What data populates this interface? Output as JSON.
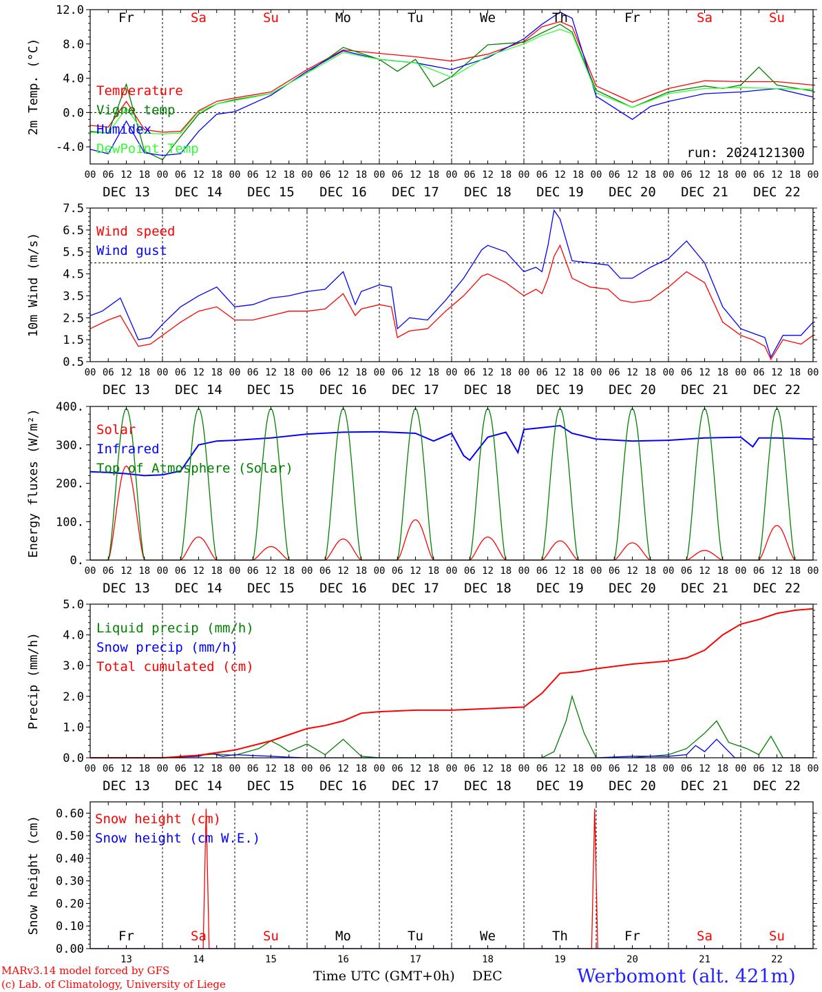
{
  "days_top": [
    {
      "label": "Fr",
      "color": "#000000"
    },
    {
      "label": "Sa",
      "color": "#ff0000"
    },
    {
      "label": "Su",
      "color": "#ff0000"
    },
    {
      "label": "Mo",
      "color": "#000000"
    },
    {
      "label": "Tu",
      "color": "#000000"
    },
    {
      "label": "We",
      "color": "#000000"
    },
    {
      "label": "Th",
      "color": "#000000"
    },
    {
      "label": "Fr",
      "color": "#000000"
    },
    {
      "label": "Sa",
      "color": "#ff0000"
    },
    {
      "label": "Su",
      "color": "#ff0000"
    }
  ],
  "date_labels": [
    "DEC 13",
    "DEC 14",
    "DEC 15",
    "DEC 16",
    "DEC 17",
    "DEC 18",
    "DEC 19",
    "DEC 20",
    "DEC 21",
    "DEC 22"
  ],
  "hour_ticks": [
    "00",
    "06",
    "12",
    "18"
  ],
  "hour_end": "00",
  "bottom_days": [
    "13",
    "14",
    "15",
    "16",
    "17",
    "18",
    "19",
    "20",
    "21",
    "22"
  ],
  "footer": {
    "model": "MARv3.14 model forced by GFS",
    "lab": "(c) Lab. of Climatology, University of Liege",
    "time_axis": "Time UTC (GMT+0h)",
    "month": "DEC",
    "station": "Werbomont (alt. 421m)"
  },
  "chart_data": [
    {
      "type": "line",
      "ylabel": "2m Temp. (°C)",
      "ylim": [
        -6,
        12
      ],
      "yticks": [
        -4,
        0,
        4,
        8,
        12
      ],
      "ytick_labels": [
        "-4.0",
        "0.0",
        "4.0",
        "8.0",
        "12.0"
      ],
      "hline": 0,
      "annotation": "run: 2024121300",
      "series": [
        {
          "name": "Temperature",
          "color": "#ff0000",
          "hours": [
            0,
            6,
            12,
            18,
            24,
            30,
            36,
            42,
            48,
            60,
            72,
            84,
            96,
            108,
            120,
            132,
            144,
            150,
            156,
            160,
            168,
            180,
            192,
            204,
            216,
            228,
            240
          ],
          "values": [
            -1.5,
            -1.7,
            1.3,
            -2.0,
            -2.3,
            -2.2,
            0.2,
            1.3,
            1.7,
            2.4,
            5.0,
            7.3,
            6.9,
            6.5,
            6.0,
            6.8,
            8.3,
            10.0,
            10.6,
            10.0,
            3.1,
            1.2,
            2.8,
            3.7,
            3.6,
            3.6,
            3.2
          ]
        },
        {
          "name": "Vigne temp",
          "color": "#008000",
          "hours": [
            0,
            6,
            12,
            18,
            24,
            30,
            36,
            42,
            48,
            60,
            72,
            84,
            96,
            102,
            108,
            114,
            120,
            132,
            144,
            150,
            156,
            160,
            168,
            180,
            192,
            204,
            210,
            216,
            222,
            228,
            240
          ],
          "values": [
            -2.2,
            -2.4,
            3.3,
            -4.5,
            -5.5,
            -2.8,
            -0.2,
            1.0,
            1.5,
            2.2,
            4.6,
            7.6,
            6.2,
            4.8,
            6.2,
            3.0,
            4.2,
            7.9,
            8.2,
            9.3,
            10.3,
            9.4,
            2.6,
            0.6,
            2.4,
            3.1,
            2.8,
            3.2,
            5.3,
            3.2,
            2.5
          ]
        },
        {
          "name": "Humidex",
          "color": "#0000ff",
          "hours": [
            0,
            6,
            12,
            18,
            24,
            30,
            36,
            42,
            48,
            60,
            72,
            84,
            96,
            108,
            120,
            132,
            144,
            150,
            156,
            160,
            168,
            180,
            186,
            192,
            204,
            216,
            228,
            240
          ],
          "values": [
            -4.3,
            -4.8,
            -1.0,
            -4.7,
            -5.0,
            -4.8,
            -2.2,
            -0.2,
            0.1,
            2.0,
            4.8,
            7.2,
            6.2,
            5.8,
            5.0,
            6.4,
            8.6,
            10.3,
            11.7,
            11.0,
            1.9,
            -0.8,
            0.7,
            1.3,
            2.2,
            2.4,
            2.8,
            1.8
          ]
        },
        {
          "name": "DewPoint Temp",
          "color": "#32ff32",
          "hours": [
            0,
            6,
            12,
            18,
            24,
            30,
            36,
            42,
            48,
            60,
            72,
            84,
            96,
            108,
            120,
            132,
            144,
            150,
            156,
            160,
            168,
            180,
            192,
            204,
            216,
            228,
            240
          ],
          "values": [
            -2.3,
            -2.4,
            0.5,
            -2.4,
            -2.5,
            -2.4,
            0.1,
            1.0,
            1.4,
            2.2,
            4.6,
            7.0,
            6.2,
            5.8,
            4.1,
            6.6,
            8.0,
            9.0,
            9.7,
            9.2,
            2.3,
            0.6,
            2.2,
            2.8,
            2.9,
            2.8,
            2.7
          ]
        }
      ]
    },
    {
      "type": "line",
      "ylabel": "10m Wind (m/s)",
      "ylim": [
        0.5,
        7.5
      ],
      "yticks": [
        0.5,
        1.5,
        2.5,
        3.5,
        4.5,
        5.5,
        6.5,
        7.5
      ],
      "ytick_labels": [
        "0.5",
        "1.5",
        "2.5",
        "3.5",
        "4.5",
        "5.5",
        "6.5",
        "7.5"
      ],
      "hline": 5.0,
      "series": [
        {
          "name": "Wind speed",
          "color": "#ff0000",
          "hours": [
            0,
            6,
            10,
            16,
            20,
            24,
            30,
            36,
            42,
            48,
            54,
            60,
            66,
            72,
            78,
            84,
            88,
            90,
            96,
            100,
            102,
            106,
            112,
            118,
            124,
            130,
            132,
            138,
            144,
            148,
            150,
            152,
            154,
            156,
            160,
            166,
            172,
            176,
            180,
            186,
            192,
            198,
            204,
            210,
            216,
            220,
            224,
            226,
            230,
            236,
            240
          ],
          "values": [
            2.0,
            2.4,
            2.6,
            1.2,
            1.3,
            1.7,
            2.3,
            2.8,
            3.0,
            2.4,
            2.4,
            2.6,
            2.8,
            2.8,
            2.9,
            3.6,
            2.6,
            2.9,
            3.1,
            3.0,
            1.6,
            1.9,
            2.0,
            2.8,
            3.5,
            4.4,
            4.5,
            4.1,
            3.5,
            3.8,
            3.6,
            4.3,
            5.3,
            5.8,
            4.3,
            3.9,
            3.8,
            3.3,
            3.2,
            3.3,
            3.9,
            4.6,
            4.1,
            2.3,
            1.7,
            1.5,
            1.2,
            0.6,
            1.5,
            1.3,
            1.7
          ]
        },
        {
          "name": "Wind gust",
          "color": "#0000ff",
          "hours": [
            0,
            4,
            10,
            16,
            20,
            24,
            30,
            36,
            42,
            48,
            54,
            60,
            66,
            72,
            78,
            84,
            88,
            90,
            96,
            100,
            102,
            106,
            112,
            118,
            124,
            130,
            132,
            138,
            144,
            148,
            150,
            152,
            154,
            156,
            160,
            166,
            172,
            176,
            180,
            186,
            192,
            198,
            204,
            210,
            216,
            220,
            224,
            226,
            230,
            236,
            240
          ],
          "values": [
            2.6,
            2.8,
            3.4,
            1.5,
            1.6,
            2.2,
            3.0,
            3.5,
            3.9,
            3.0,
            3.1,
            3.4,
            3.5,
            3.7,
            3.8,
            4.6,
            3.1,
            3.7,
            4.0,
            3.9,
            2.0,
            2.5,
            2.4,
            3.3,
            4.3,
            5.6,
            5.8,
            5.5,
            4.6,
            4.8,
            4.6,
            5.8,
            7.4,
            7.0,
            5.1,
            5.0,
            4.9,
            4.3,
            4.3,
            4.8,
            5.2,
            6.0,
            5.0,
            3.0,
            2.0,
            1.8,
            1.6,
            0.7,
            1.7,
            1.7,
            2.3
          ]
        }
      ]
    },
    {
      "type": "line",
      "ylabel": "Energy fluxes (W/m²)",
      "ylim": [
        0,
        400
      ],
      "yticks": [
        0,
        100,
        200,
        300,
        400
      ],
      "ytick_labels": [
        "0.",
        "100.",
        "200.",
        "300.",
        "400."
      ],
      "series": [
        {
          "name": "Solar",
          "color": "#ff0000",
          "peaks": [
            245,
            60,
            35,
            55,
            105,
            60,
            50,
            45,
            25,
            90
          ]
        },
        {
          "name": "Infrared",
          "color": "#0000ff",
          "hours": [
            0,
            6,
            12,
            18,
            24,
            30,
            36,
            42,
            48,
            60,
            72,
            84,
            96,
            108,
            114,
            120,
            124,
            126,
            132,
            138,
            142,
            144,
            150,
            156,
            160,
            168,
            180,
            192,
            204,
            216,
            220,
            222,
            228,
            240
          ],
          "values": [
            230,
            228,
            225,
            220,
            222,
            232,
            300,
            310,
            312,
            318,
            328,
            333,
            334,
            330,
            310,
            330,
            272,
            260,
            320,
            333,
            280,
            340,
            345,
            350,
            330,
            315,
            310,
            312,
            318,
            320,
            295,
            318,
            318,
            315
          ]
        },
        {
          "name": "Top of Atmosphere (Solar)",
          "color": "#008000",
          "peaks": [
            395,
            395,
            395,
            395,
            395,
            395,
            395,
            395,
            395,
            395
          ]
        }
      ]
    },
    {
      "type": "line",
      "ylabel": "Precip (mm/h)",
      "ylim": [
        0,
        5
      ],
      "yticks": [
        0,
        1,
        2,
        3,
        4,
        5
      ],
      "ytick_labels": [
        "0.0",
        "1.0",
        "2.0",
        "3.0",
        "4.0",
        "5.0"
      ],
      "series": [
        {
          "name": "Liquid precip (mm/h)",
          "color": "#008000",
          "hours": [
            0,
            24,
            30,
            36,
            42,
            48,
            56,
            60,
            63,
            66,
            72,
            78,
            84,
            90,
            96,
            120,
            150,
            154,
            158,
            160,
            164,
            168,
            180,
            192,
            198,
            204,
            208,
            212,
            218,
            222,
            226,
            230,
            240
          ],
          "values": [
            0,
            0,
            0.05,
            0.08,
            0.12,
            0.08,
            0.3,
            0.55,
            0.4,
            0.2,
            0.45,
            0.1,
            0.6,
            0.05,
            0,
            0,
            0,
            0.2,
            1.2,
            2.0,
            0.8,
            0,
            0,
            0.1,
            0.3,
            0.8,
            1.2,
            0.5,
            0.3,
            0.1,
            0.7,
            0,
            0
          ]
        },
        {
          "name": "Snow precip (mm/h)",
          "color": "#0000ff",
          "hours": [
            0,
            24,
            36,
            40,
            44,
            48,
            60,
            66,
            72,
            120,
            168,
            180,
            192,
            198,
            201,
            204,
            208,
            214,
            240
          ],
          "values": [
            0,
            0,
            0.05,
            0.15,
            0.05,
            0.1,
            0.05,
            0.02,
            0,
            0,
            0,
            0.05,
            0.05,
            0.1,
            0.4,
            0.2,
            0.6,
            0,
            0
          ]
        },
        {
          "name": "Total cumulated (cm)",
          "color": "#ff0000",
          "hours": [
            0,
            24,
            36,
            48,
            60,
            66,
            72,
            78,
            84,
            90,
            96,
            108,
            120,
            132,
            144,
            150,
            156,
            162,
            168,
            180,
            192,
            198,
            204,
            210,
            216,
            222,
            228,
            234,
            240
          ],
          "values": [
            0,
            0,
            0.08,
            0.25,
            0.55,
            0.75,
            0.95,
            1.05,
            1.2,
            1.45,
            1.5,
            1.55,
            1.55,
            1.6,
            1.65,
            2.1,
            2.75,
            2.8,
            2.9,
            3.05,
            3.15,
            3.25,
            3.5,
            4.0,
            4.35,
            4.5,
            4.7,
            4.8,
            4.85
          ]
        }
      ]
    },
    {
      "type": "line",
      "ylabel": "Snow height (cm)",
      "ylim": [
        0,
        0.65
      ],
      "yticks": [
        0,
        0.1,
        0.2,
        0.3,
        0.4,
        0.5,
        0.6
      ],
      "ytick_labels": [
        "0.00",
        "0.10",
        "0.20",
        "0.30",
        "0.40",
        "0.50",
        "0.60"
      ],
      "series": [
        {
          "name": "Snow height (cm)",
          "color": "#ff0000",
          "hours": [
            0,
            37.5,
            38.5,
            39.5,
            166.5,
            167.5,
            168.5,
            240
          ],
          "values": [
            0,
            0,
            0.62,
            0,
            0,
            0.62,
            0,
            0
          ]
        },
        {
          "name": "Snow height (cm W.E.)",
          "color": "#0000ff",
          "hours": [
            0,
            240
          ],
          "values": [
            0,
            0
          ]
        }
      ]
    }
  ]
}
